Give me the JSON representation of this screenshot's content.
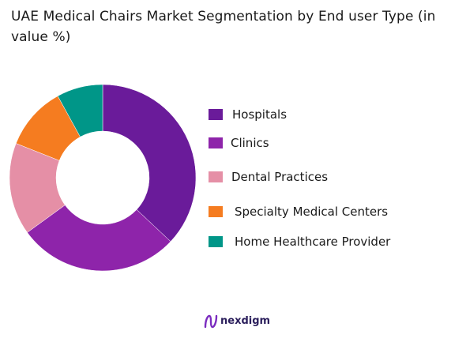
{
  "title": "UAE Medical Chairs Market Segmentation by End user Type  (in value %)",
  "brand": {
    "name": "nexdigm",
    "logo_icon": "nexdigm-logo-icon"
  },
  "chart_data": {
    "type": "pie",
    "style": "donut",
    "title": "UAE Medical Chairs Market Segmentation by End user Type  (in value %)",
    "unit": "%",
    "legend_position": "right",
    "categories": [
      "Hospitals",
      "Clinics",
      "Dental Practices",
      "Specialty Medical Centers",
      "Home Healthcare Provider"
    ],
    "values": [
      37,
      28,
      16,
      11,
      8
    ],
    "colors": [
      "#6a1b9a",
      "#8e24aa",
      "#e58fa6",
      "#f57c20",
      "#009688"
    ]
  }
}
